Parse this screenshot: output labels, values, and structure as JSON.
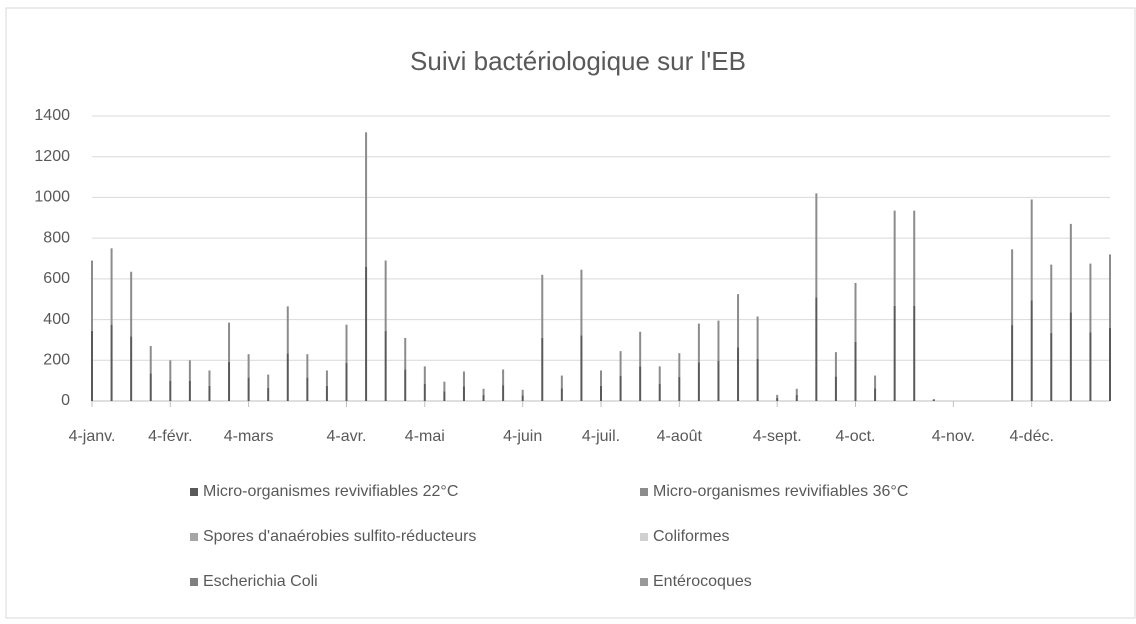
{
  "chart_data": {
    "type": "stacked_bar",
    "title": "Suivi bactériologique sur l'EB",
    "categories": [
      "4-janv.",
      null,
      null,
      null,
      "4-févr.",
      null,
      null,
      null,
      "4-mars",
      null,
      null,
      null,
      null,
      "4-avr.",
      null,
      null,
      null,
      "4-mai",
      null,
      null,
      null,
      null,
      "4-juin",
      null,
      null,
      null,
      "4-juil.",
      null,
      null,
      null,
      "4-août",
      null,
      null,
      null,
      null,
      "4-sept.",
      null,
      null,
      null,
      "4-oct.",
      null,
      null,
      null,
      null,
      "4-nov.",
      null,
      null,
      null,
      "4-déc.",
      null,
      null,
      null,
      null
    ],
    "series": [
      {
        "name": "Micro-organismes revivifiables 22°C",
        "color": "#595959",
        "values": [
          345,
          375,
          318,
          135,
          100,
          100,
          75,
          193,
          115,
          65,
          233,
          115,
          75,
          188,
          660,
          345,
          155,
          85,
          48,
          73,
          30,
          78,
          28,
          310,
          63,
          323,
          75,
          123,
          170,
          85,
          118,
          190,
          198,
          263,
          208,
          15,
          30,
          510,
          120,
          290,
          63,
          468,
          468,
          5,
          null,
          null,
          null,
          373,
          495,
          335,
          435,
          338,
          360
        ]
      },
      {
        "name": "Micro-organismes revivifiables 36°C",
        "color": "#8c8c8c",
        "values": [
          345,
          375,
          317,
          135,
          100,
          100,
          75,
          192,
          115,
          65,
          232,
          115,
          75,
          187,
          660,
          345,
          155,
          85,
          47,
          72,
          30,
          77,
          27,
          310,
          62,
          322,
          75,
          122,
          170,
          85,
          117,
          190,
          197,
          262,
          207,
          15,
          30,
          510,
          120,
          290,
          62,
          467,
          467,
          5,
          null,
          null,
          null,
          372,
          495,
          335,
          435,
          337,
          360
        ]
      },
      {
        "name": "Spores d'anaérobies sulfito-réducteurs",
        "color": "#a5a5a5",
        "values": [
          0,
          0,
          0,
          0,
          0,
          0,
          0,
          0,
          0,
          0,
          0,
          0,
          0,
          0,
          0,
          0,
          0,
          0,
          0,
          0,
          0,
          0,
          0,
          0,
          0,
          0,
          0,
          0,
          0,
          0,
          0,
          0,
          0,
          0,
          0,
          0,
          0,
          0,
          0,
          0,
          0,
          0,
          0,
          0,
          null,
          null,
          null,
          0,
          0,
          0,
          0,
          0,
          0
        ]
      },
      {
        "name": "Coliformes",
        "color": "#d0d0d0",
        "values": [
          0,
          0,
          0,
          0,
          0,
          0,
          0,
          0,
          0,
          0,
          0,
          0,
          0,
          0,
          0,
          0,
          0,
          0,
          0,
          0,
          0,
          0,
          0,
          0,
          0,
          0,
          0,
          0,
          0,
          0,
          0,
          0,
          0,
          0,
          0,
          0,
          0,
          0,
          0,
          0,
          0,
          0,
          0,
          0,
          null,
          null,
          null,
          0,
          0,
          0,
          0,
          0,
          0
        ]
      },
      {
        "name": "Escherichia Coli",
        "color": "#7f7f7f",
        "values": [
          0,
          0,
          0,
          0,
          0,
          0,
          0,
          0,
          0,
          0,
          0,
          0,
          0,
          0,
          0,
          0,
          0,
          0,
          0,
          0,
          0,
          0,
          0,
          0,
          0,
          0,
          0,
          0,
          0,
          0,
          0,
          0,
          0,
          0,
          0,
          0,
          0,
          0,
          0,
          0,
          0,
          0,
          0,
          0,
          null,
          null,
          null,
          0,
          0,
          0,
          0,
          0,
          0
        ]
      },
      {
        "name": "Entérocoques",
        "color": "#989898",
        "values": [
          0,
          0,
          0,
          0,
          0,
          0,
          0,
          0,
          0,
          0,
          0,
          0,
          0,
          0,
          0,
          0,
          0,
          0,
          0,
          0,
          0,
          0,
          0,
          0,
          0,
          0,
          0,
          0,
          0,
          0,
          0,
          0,
          0,
          0,
          0,
          0,
          0,
          0,
          0,
          0,
          0,
          0,
          0,
          0,
          null,
          null,
          null,
          0,
          0,
          0,
          0,
          0,
          0
        ]
      }
    ],
    "ylim": [
      0,
      1400
    ],
    "yticks": [
      0,
      200,
      400,
      600,
      800,
      1000,
      1200,
      1400
    ],
    "grid": true
  }
}
